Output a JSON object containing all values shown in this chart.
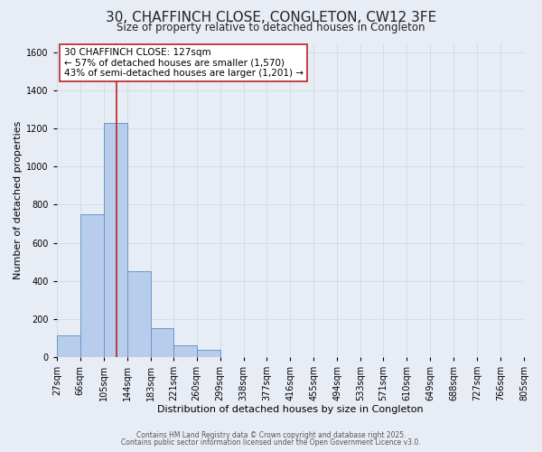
{
  "title": "30, CHAFFINCH CLOSE, CONGLETON, CW12 3FE",
  "subtitle": "Size of property relative to detached houses in Congleton",
  "xlabel": "Distribution of detached houses by size in Congleton",
  "ylabel": "Number of detached properties",
  "bin_edges": [
    27,
    66,
    105,
    144,
    183,
    221,
    260,
    299,
    338,
    377,
    416,
    455,
    494,
    533,
    571,
    610,
    649,
    688,
    727,
    766,
    805
  ],
  "bin_counts": [
    113,
    750,
    1230,
    450,
    150,
    60,
    35,
    0,
    0,
    0,
    0,
    0,
    0,
    0,
    0,
    0,
    0,
    0,
    0,
    0
  ],
  "bar_color": "#b8ccec",
  "bar_edge_color": "#6699cc",
  "background_color": "#e8edf5",
  "grid_color": "#d0d8e8",
  "vline_x": 127,
  "vline_color": "#bb2222",
  "ylim": [
    0,
    1650
  ],
  "yticks": [
    0,
    200,
    400,
    600,
    800,
    1000,
    1200,
    1400,
    1600
  ],
  "annotation_title": "30 CHAFFINCH CLOSE: 127sqm",
  "annotation_line1": "← 57% of detached houses are smaller (1,570)",
  "annotation_line2": "43% of semi-detached houses are larger (1,201) →",
  "annotation_box_facecolor": "#ffffff",
  "annotation_box_edgecolor": "#bb2222",
  "footer_line1": "Contains HM Land Registry data © Crown copyright and database right 2025.",
  "footer_line2": "Contains public sector information licensed under the Open Government Licence v3.0.",
  "title_fontsize": 11,
  "subtitle_fontsize": 8.5,
  "axis_label_fontsize": 8,
  "tick_label_fontsize": 7,
  "annotation_fontsize": 7.5,
  "footer_fontsize": 5.5
}
